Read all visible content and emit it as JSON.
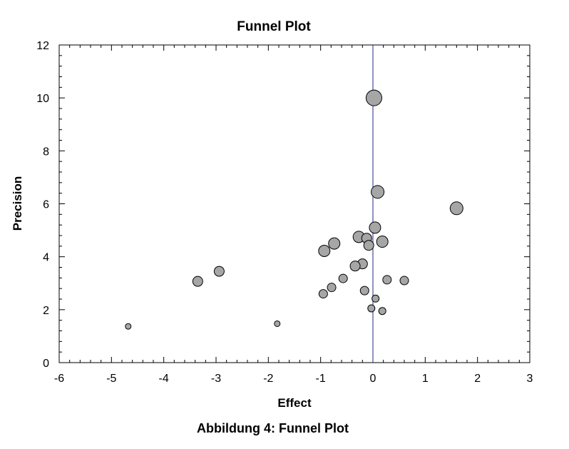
{
  "chart_data": {
    "type": "scatter",
    "title": "Funnel Plot",
    "xlabel": "Effect",
    "ylabel": "Precision",
    "xlim": [
      -6,
      3
    ],
    "ylim": [
      0,
      12
    ],
    "xticks": [
      -6,
      -5,
      -4,
      -3,
      -2,
      -1,
      0,
      1,
      2,
      3
    ],
    "yticks": [
      0,
      2,
      4,
      6,
      8,
      10,
      12
    ],
    "reference_line_x": 0,
    "grid": false,
    "legend": "none",
    "marker_color": "#a6a6a6",
    "line_color": "#1f2a80",
    "points": [
      {
        "x": 0.02,
        "y": 10.0,
        "w": 11
      },
      {
        "x": 0.09,
        "y": 6.45,
        "w": 9
      },
      {
        "x": 1.6,
        "y": 5.83,
        "w": 9
      },
      {
        "x": 0.04,
        "y": 5.1,
        "w": 8
      },
      {
        "x": -0.27,
        "y": 4.75,
        "w": 8
      },
      {
        "x": -0.12,
        "y": 4.7,
        "w": 7
      },
      {
        "x": 0.18,
        "y": 4.57,
        "w": 8
      },
      {
        "x": -0.74,
        "y": 4.5,
        "w": 8
      },
      {
        "x": -0.08,
        "y": 4.43,
        "w": 7
      },
      {
        "x": -0.93,
        "y": 4.22,
        "w": 8
      },
      {
        "x": -0.2,
        "y": 3.73,
        "w": 7
      },
      {
        "x": -0.34,
        "y": 3.65,
        "w": 7
      },
      {
        "x": -2.94,
        "y": 3.45,
        "w": 7
      },
      {
        "x": -0.57,
        "y": 3.18,
        "w": 6
      },
      {
        "x": 0.27,
        "y": 3.13,
        "w": 6
      },
      {
        "x": 0.6,
        "y": 3.1,
        "w": 6
      },
      {
        "x": -3.35,
        "y": 3.07,
        "w": 7
      },
      {
        "x": -0.79,
        "y": 2.84,
        "w": 6
      },
      {
        "x": -0.16,
        "y": 2.72,
        "w": 6
      },
      {
        "x": -0.95,
        "y": 2.6,
        "w": 6
      },
      {
        "x": 0.05,
        "y": 2.42,
        "w": 5
      },
      {
        "x": -0.03,
        "y": 2.05,
        "w": 5
      },
      {
        "x": 0.18,
        "y": 1.95,
        "w": 5
      },
      {
        "x": -1.83,
        "y": 1.47,
        "w": 4
      },
      {
        "x": -4.68,
        "y": 1.37,
        "w": 4
      }
    ]
  },
  "caption": "Abbildung 4: Funnel Plot"
}
